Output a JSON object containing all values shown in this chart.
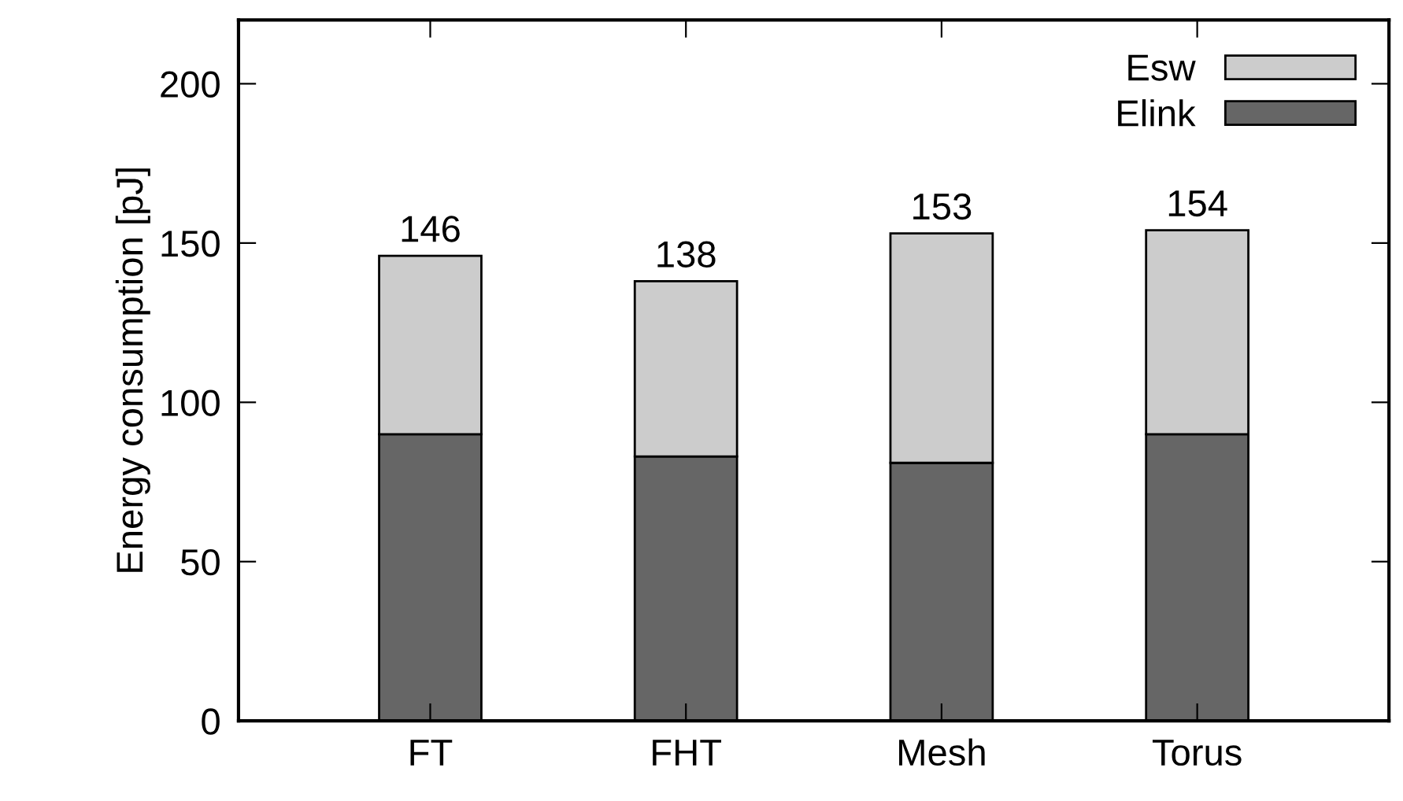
{
  "chart_data": {
    "type": "bar",
    "stacked": true,
    "ylabel": "Energy consumption [pJ]",
    "categories": [
      "FT",
      "FHT",
      "Mesh",
      "Torus"
    ],
    "series": [
      {
        "name": "Elink",
        "color": "#666666",
        "values": [
          90,
          83,
          81,
          90
        ]
      },
      {
        "name": "Esw",
        "color": "#cccccc",
        "values": [
          56,
          55,
          72,
          64
        ]
      }
    ],
    "totals": [
      "146",
      "138",
      "153",
      "154"
    ],
    "ylim": [
      0,
      220
    ],
    "yticks": [
      0,
      50,
      100,
      150,
      200
    ],
    "grid": false,
    "legend": "top right"
  }
}
